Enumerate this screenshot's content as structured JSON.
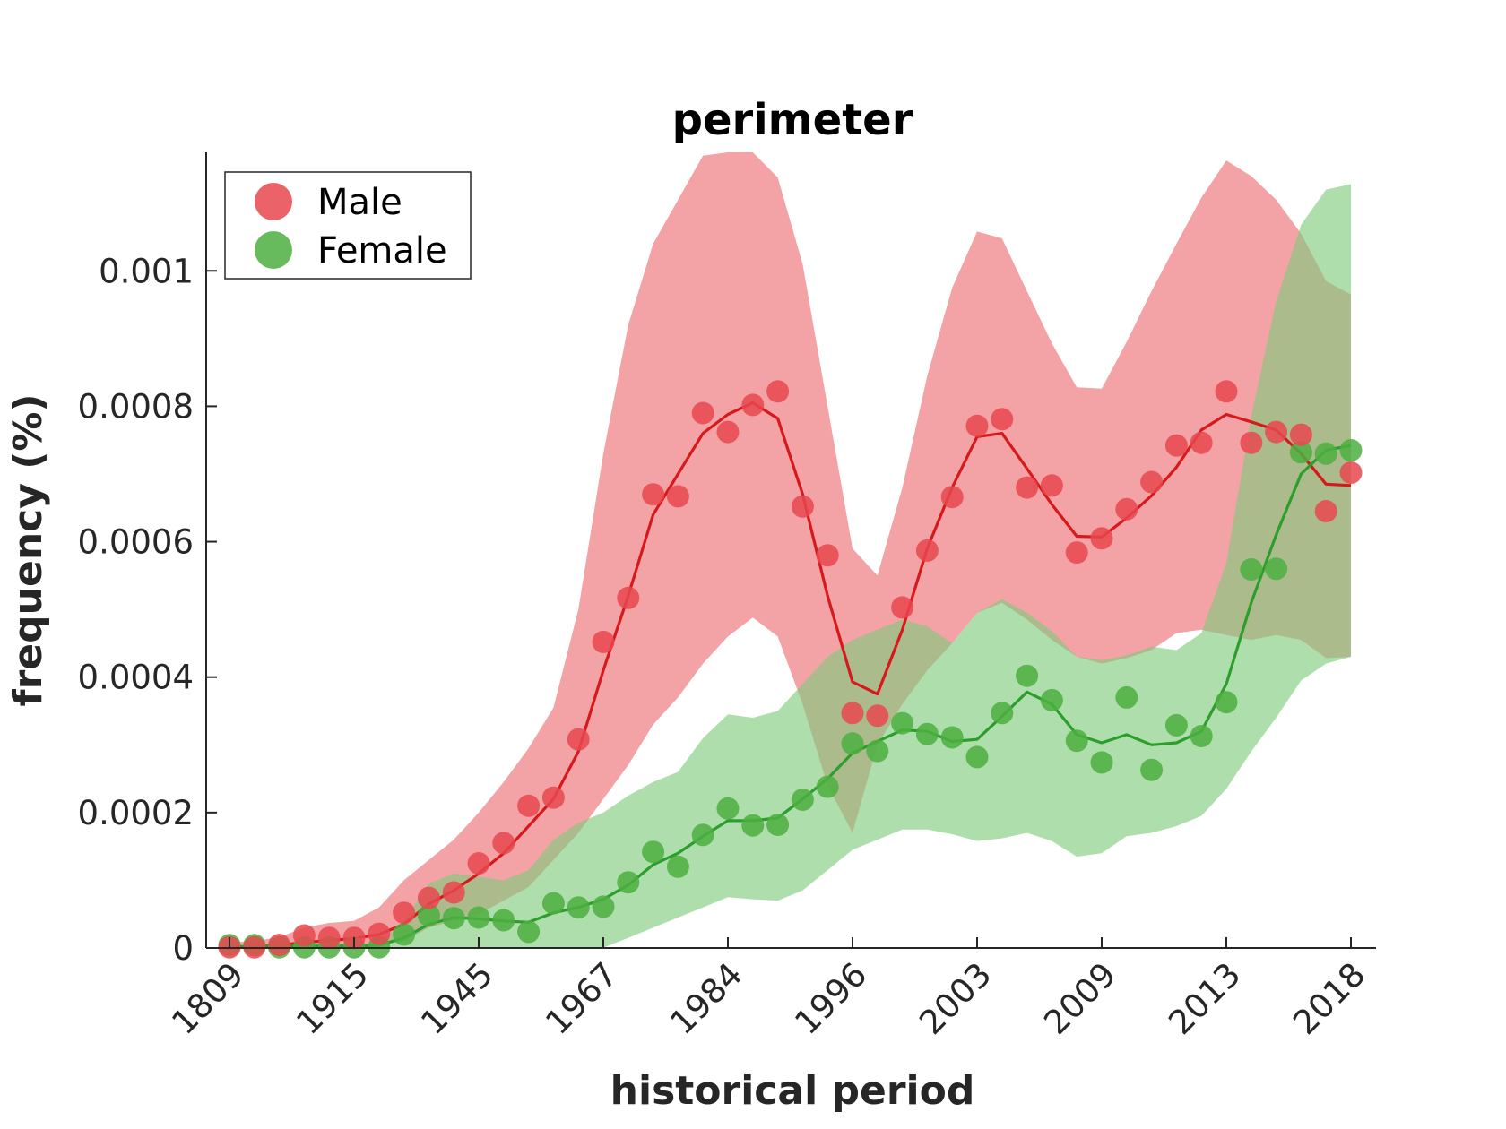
{
  "chart_data": {
    "type": "scatter",
    "title": "perimeter",
    "xlabel": "historical period",
    "ylabel": "frequency (%)",
    "x_tick_labels": [
      "1809",
      "1915",
      "1945",
      "1967",
      "1984",
      "1996",
      "2003",
      "2009",
      "2013",
      "2018"
    ],
    "y_ticks": [
      0,
      0.0002,
      0.0004,
      0.0006,
      0.0008,
      0.001
    ],
    "y_tick_labels": [
      "0",
      "0.0002",
      "0.0004",
      "0.0006",
      "0.0008",
      "0.001"
    ],
    "ylim": [
      0,
      0.001175
    ],
    "grid": false,
    "legend_position": "top-left",
    "x_index": [
      0,
      1,
      2,
      3,
      4,
      5,
      6,
      7,
      8,
      9,
      10,
      11,
      12,
      13,
      14,
      15,
      16,
      17,
      18,
      19,
      20,
      21,
      22,
      23,
      24,
      25,
      26,
      27,
      28,
      29,
      30,
      31,
      32,
      33,
      34,
      35,
      36,
      37,
      38,
      39,
      40,
      41,
      42,
      43,
      44,
      45
    ],
    "series": [
      {
        "name": "Male",
        "marker_color": "#e8484f",
        "line_color": "#d7191c",
        "band_color": "#ee8084",
        "points": [
          1.1e-06,
          1.1e-06,
          4.5e-06,
          1.85e-05,
          1.5e-05,
          1.5e-05,
          2.1e-05,
          5.2e-05,
          7.4e-05,
          8.2e-05,
          0.000125,
          0.000155,
          0.00021,
          0.000222,
          0.000308,
          0.000452,
          0.000517,
          0.00067,
          0.000667,
          0.00079,
          0.000762,
          0.000802,
          0.000822,
          0.000652,
          0.00058,
          0.000347,
          0.000343,
          0.000503,
          0.000587,
          0.000666,
          0.000771,
          0.000781,
          0.00068,
          0.000683,
          0.000584,
          0.000605,
          0.000648,
          0.000688,
          0.000742,
          0.000746,
          0.000822,
          0.000746,
          0.000762,
          0.000758,
          0.000645,
          0.000702
        ],
        "line": [
          1.5e-06,
          2e-06,
          4e-06,
          8.5e-06,
          1.1e-05,
          1.4e-05,
          2e-05,
          3.5e-05,
          6.5e-05,
          8.5e-05,
          0.00011,
          0.00014,
          0.00018,
          0.00022,
          0.00029,
          0.00041,
          0.00052,
          0.00064,
          0.0007,
          0.00076,
          0.000788,
          0.000805,
          0.000782,
          0.00067,
          0.00052,
          0.000393,
          0.000375,
          0.00047,
          0.00059,
          0.00068,
          0.000755,
          0.00076,
          0.000708,
          0.000655,
          0.000608,
          0.000607,
          0.000635,
          0.000668,
          0.00071,
          0.000765,
          0.000788,
          0.000777,
          0.000765,
          0.00073,
          0.000685,
          0.000683
        ],
        "band_upper": [
          8e-06,
          1e-05,
          1.6e-05,
          3e-05,
          3.7e-05,
          4e-05,
          6e-05,
          0.0001,
          0.00013,
          0.00016,
          0.0002,
          0.000245,
          0.000295,
          0.000355,
          0.0005,
          0.00073,
          0.00092,
          0.00104,
          0.001105,
          0.00117,
          0.001175,
          0.001175,
          0.001138,
          0.00101,
          0.0008,
          0.00059,
          0.00055,
          0.00068,
          0.000845,
          0.000975,
          0.001058,
          0.001048,
          0.00097,
          0.000893,
          0.000828,
          0.000826,
          0.000895,
          0.00097,
          0.00104,
          0.001108,
          0.001163,
          0.00114,
          0.001105,
          0.001055,
          0.000985,
          0.000965
        ],
        "band_lower": [
          5e-07,
          5e-07,
          5e-07,
          1e-06,
          1e-06,
          1e-06,
          4e-06,
          1e-05,
          3e-05,
          4e-05,
          5e-05,
          7e-05,
          9e-05,
          0.00013,
          0.00017,
          0.00022,
          0.00027,
          0.00033,
          0.00037,
          0.00042,
          0.00046,
          0.000488,
          0.00046,
          0.00036,
          0.00024,
          0.00017,
          0.0003,
          0.00036,
          0.00041,
          0.00045,
          0.000495,
          0.00051,
          0.000485,
          0.000455,
          0.00043,
          0.00042,
          0.000428,
          0.00044,
          0.000465,
          0.00047,
          0.000462,
          0.000455,
          0.000462,
          0.000455,
          0.000428,
          0.00043
        ]
      },
      {
        "name": "Female",
        "marker_color": "#4caf40",
        "line_color": "#2c9e2c",
        "band_color": "#7ec97a",
        "points": [
          4.2e-06,
          4.2e-06,
          1e-06,
          1e-06,
          1e-06,
          1e-06,
          1e-06,
          2e-05,
          4.8e-05,
          4.4e-05,
          4.5e-05,
          4.1e-05,
          2.4e-05,
          6.6e-05,
          6e-05,
          6.1e-05,
          9.7e-05,
          0.000142,
          0.00012,
          0.000167,
          0.000206,
          0.000181,
          0.000182,
          0.000219,
          0.000238,
          0.000302,
          0.000291,
          0.000332,
          0.000316,
          0.000311,
          0.000282,
          0.000347,
          0.000402,
          0.000366,
          0.000306,
          0.000274,
          0.00037,
          0.000263,
          0.000329,
          0.000313,
          0.000363,
          0.000559,
          0.00056,
          0.000732,
          0.00073,
          0.000735
        ],
        "line": [
          2e-06,
          2e-06,
          2.5e-06,
          3e-06,
          3e-06,
          3e-06,
          4e-06,
          1.5e-05,
          3.5e-05,
          4.5e-05,
          4.3e-05,
          4e-05,
          3.8e-05,
          5.2e-05,
          6e-05,
          7.2e-05,
          9.3e-05,
          0.000123,
          0.00014,
          0.000165,
          0.000188,
          0.000188,
          0.000192,
          0.00022,
          0.00025,
          0.000288,
          0.000305,
          0.000322,
          0.00032,
          0.000305,
          0.000308,
          0.000342,
          0.000378,
          0.00036,
          0.000315,
          0.000303,
          0.000315,
          0.0003,
          0.000303,
          0.00032,
          0.00039,
          0.00051,
          0.00061,
          0.0007,
          0.000735,
          0.000742
        ],
        "band_upper": [
          6e-06,
          6e-06,
          6e-06,
          6e-06,
          6e-06,
          6e-06,
          8e-06,
          4e-05,
          9.5e-05,
          0.00011,
          0.000105,
          0.0001,
          0.000115,
          0.00016,
          0.000185,
          0.0002,
          0.000225,
          0.000245,
          0.00026,
          0.00031,
          0.000345,
          0.00034,
          0.00035,
          0.00039,
          0.00043,
          0.000455,
          0.00047,
          0.000485,
          0.000475,
          0.00045,
          0.000495,
          0.000515,
          0.000495,
          0.000468,
          0.00043,
          0.000425,
          0.000432,
          0.000445,
          0.00044,
          0.000465,
          0.000568,
          0.000785,
          0.000955,
          0.001068,
          0.00112,
          0.001128
        ],
        "band_lower": [
          5e-07,
          5e-07,
          5e-07,
          5e-07,
          5e-07,
          5e-07,
          5e-07,
          5e-07,
          5e-07,
          5e-07,
          5e-07,
          5e-07,
          5e-07,
          5e-07,
          5e-07,
          5e-07,
          1.5e-05,
          3e-05,
          4.5e-05,
          6e-05,
          7.5e-05,
          7.2e-05,
          7e-05,
          8.5e-05,
          0.000115,
          0.000145,
          0.00016,
          0.000175,
          0.000175,
          0.000168,
          0.000158,
          0.000162,
          0.00017,
          0.000158,
          0.000135,
          0.00014,
          0.000165,
          0.00017,
          0.00018,
          0.000195,
          0.000235,
          0.00029,
          0.00034,
          0.000395,
          0.00042,
          0.00043
        ]
      }
    ]
  }
}
